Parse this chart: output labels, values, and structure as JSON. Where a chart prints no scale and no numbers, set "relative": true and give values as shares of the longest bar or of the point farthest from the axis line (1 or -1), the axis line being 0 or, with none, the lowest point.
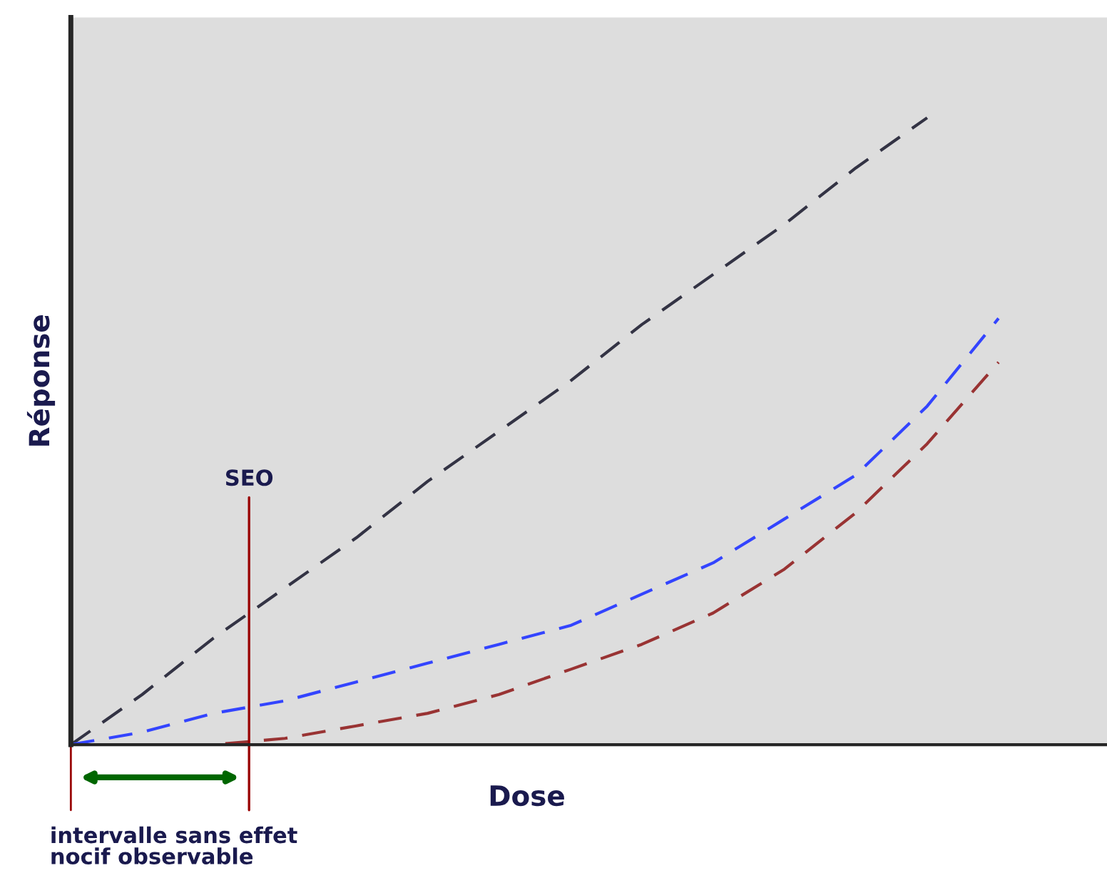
{
  "chart_data": {
    "type": "line",
    "relative": true,
    "xlabel": "Dose",
    "ylabel": "Réponse",
    "categories": [
      null,
      null,
      null,
      null,
      null,
      null,
      null,
      null,
      null,
      null,
      null,
      null,
      null,
      null
    ],
    "series": [
      {
        "color": "#333344",
        "values": [
          0,
          0.08,
          0.17,
          0.25,
          0.33,
          0.42,
          0.5,
          0.58,
          0.67,
          0.75,
          0.83,
          0.92,
          1,
          null
        ]
      },
      {
        "color": "#3344ff",
        "values": [
          0,
          0.02,
          0.05,
          0.07,
          0.1,
          0.13,
          0.16,
          0.19,
          0.24,
          0.29,
          0.36,
          0.43,
          0.54,
          0.68
        ]
      },
      {
        "color": "#993333",
        "values": [
          0,
          0,
          0,
          0.01,
          0.03,
          0.05,
          0.08,
          0.12,
          0.16,
          0.21,
          0.28,
          0.37,
          0.48,
          0.61
        ]
      }
    ],
    "line_style": "dashed",
    "marker": "none",
    "legend": false,
    "annotations": [
      "SEO",
      "intervalle sans effet\nnocif observable"
    ]
  }
}
